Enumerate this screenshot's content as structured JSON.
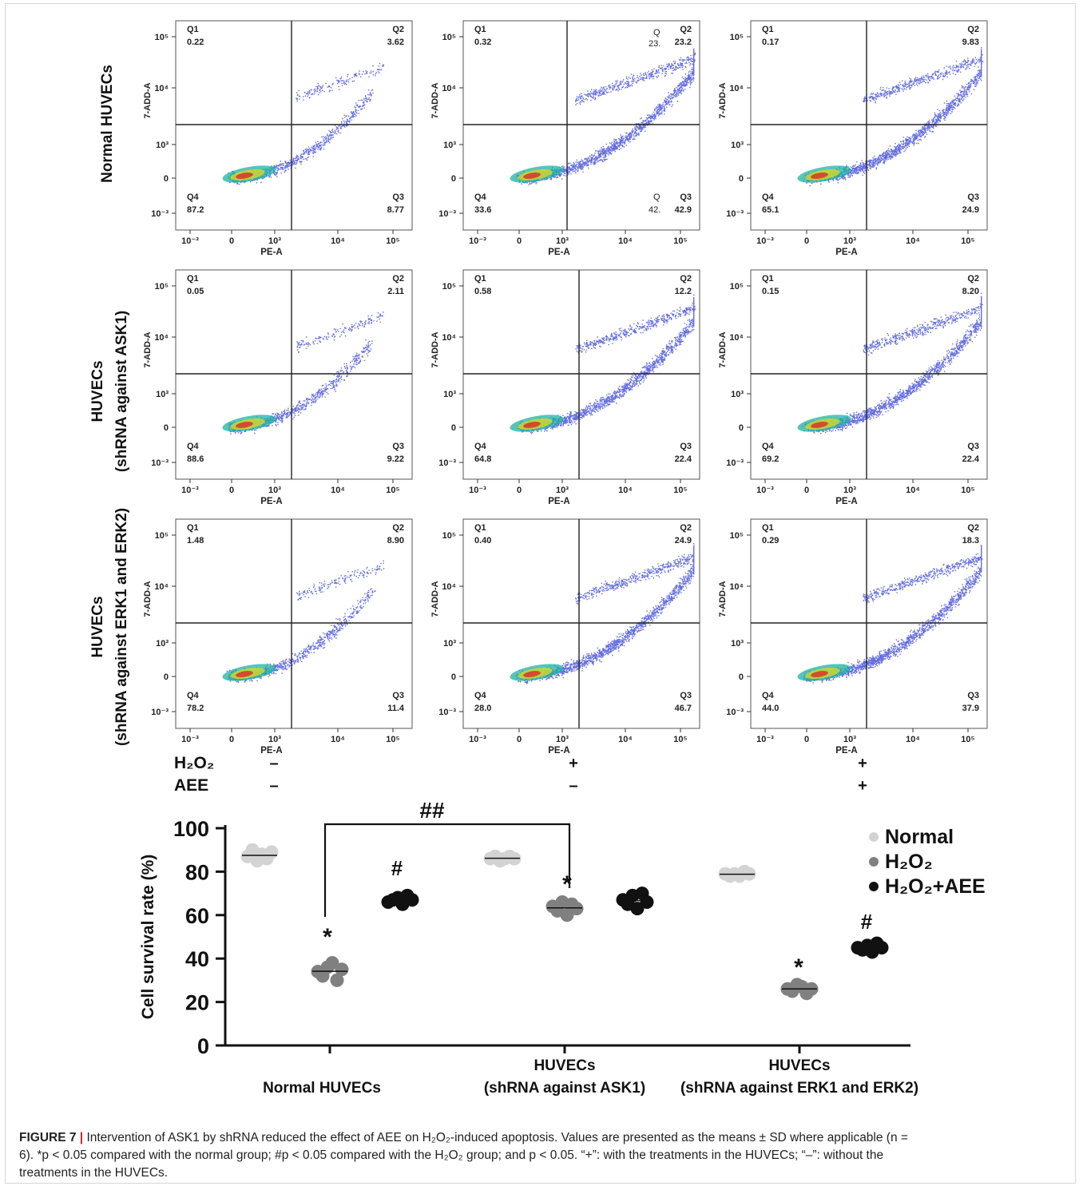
{
  "figure": {
    "rows": [
      {
        "label_lines": [
          "Normal HUVECs"
        ]
      },
      {
        "label_lines": [
          "HUVECs",
          "(shRNA against ASK1)"
        ]
      },
      {
        "label_lines": [
          "HUVECs",
          "(shRNA against ERK1 and ERK2)"
        ]
      }
    ],
    "flow_axes": {
      "xlabel": "PE-A",
      "ylabel": "7-ADD-A",
      "xticks": [
        "10⁻³",
        "0",
        "10³",
        "10⁴",
        "10⁵"
      ],
      "yticks": [
        "10⁵",
        "10⁴",
        "10³",
        "0",
        "10⁻³"
      ]
    },
    "panels": [
      {
        "q1": "0.22",
        "q2": "3.62",
        "q3": "8.77",
        "q4": "87.2"
      },
      {
        "q1": "0.32",
        "q2": "23.2",
        "q3": "42.9",
        "q4": "33.6",
        "extra": [
          {
            "label": "Q",
            "value": "23."
          },
          {
            "label": "Q",
            "value": "42."
          }
        ]
      },
      {
        "q1": "0.17",
        "q2": "9.83",
        "q3": "24.9",
        "q4": "65.1"
      },
      {
        "q1": "0.05",
        "q2": "2.11",
        "q3": "9.22",
        "q4": "88.6"
      },
      {
        "q1": "0.58",
        "q2": "12.2",
        "q3": "22.4",
        "q4": "64.8"
      },
      {
        "q1": "0.15",
        "q2": "8.20",
        "q3": "22.4",
        "q4": "69.2"
      },
      {
        "q1": "1.48",
        "q2": "8.90",
        "q3": "11.4",
        "q4": "78.2"
      },
      {
        "q1": "0.40",
        "q2": "24.9",
        "q3": "46.7",
        "q4": "28.0"
      },
      {
        "q1": "0.29",
        "q2": "18.3",
        "q3": "37.9",
        "q4": "44.0"
      }
    ],
    "quadrant_names": [
      "Q1",
      "Q2",
      "Q3",
      "Q4"
    ],
    "treatments": [
      {
        "name": "H₂O₂",
        "values": [
          "–",
          "+",
          "+"
        ]
      },
      {
        "name": "AEE",
        "values": [
          "–",
          "–",
          "+"
        ]
      }
    ]
  },
  "chart_data": {
    "type": "scatter",
    "ylabel": "Cell survival rate (%)",
    "ylim": [
      0,
      100
    ],
    "yticks": [
      0,
      20,
      40,
      60,
      80,
      100
    ],
    "categories": [
      "Normal HUVECs",
      "HUVECs\n(shRNA against ASK1)",
      "HUVECs\n(shRNA against ERK1 and ERK2)"
    ],
    "series": [
      {
        "name": "Normal",
        "color": "#d3d3d3",
        "values": [
          [
            87,
            90,
            85,
            88,
            86,
            89
          ],
          [
            86,
            87,
            85,
            86,
            87,
            86
          ],
          [
            79,
            78,
            79,
            78,
            80,
            79
          ]
        ]
      },
      {
        "name": "H₂O₂",
        "color": "#808080",
        "values": [
          [
            34,
            32,
            36,
            38,
            30,
            35
          ],
          [
            64,
            62,
            66,
            60,
            65,
            63
          ],
          [
            26,
            25,
            28,
            27,
            24,
            26
          ]
        ]
      },
      {
        "name": "H₂O₂+AEE",
        "color": "#111111",
        "values": [
          [
            66,
            67,
            68,
            65,
            69,
            67
          ],
          [
            67,
            65,
            69,
            63,
            70,
            66
          ],
          [
            45,
            44,
            46,
            43,
            47,
            45
          ]
        ]
      }
    ],
    "significance": {
      "star": "*",
      "hash": "#",
      "bracket": "##"
    },
    "legend_position": "top-right"
  },
  "caption": {
    "label": "FIGURE 7",
    "line1": " Intervention of ASK1 by shRNA reduced the effect of AEE on H₂O₂-induced apoptosis. Values are presented as the means ± SD where applicable (n =",
    "line2": "6). *p < 0.05 compared with the normal group; #p < 0.05 compared with the H₂O₂ group; and p < 0.05. “+”: with the treatments in the HUVECs; “–”: without the",
    "line3": "treatments in the HUVECs."
  }
}
